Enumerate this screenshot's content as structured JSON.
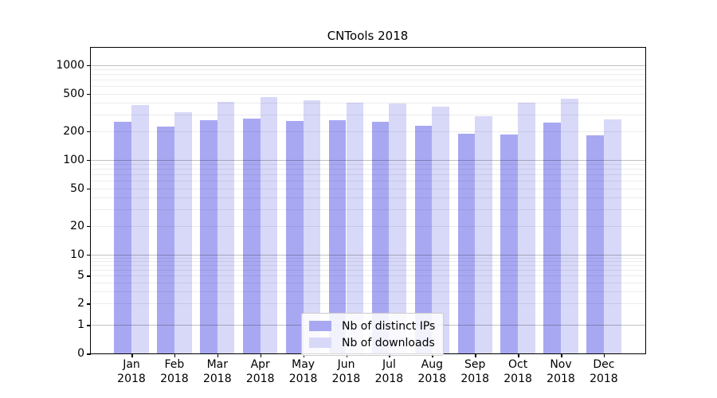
{
  "chart_data": {
    "type": "bar",
    "title": "CNTools 2018",
    "categories": [
      {
        "month": "Jan",
        "year": "2018"
      },
      {
        "month": "Feb",
        "year": "2018"
      },
      {
        "month": "Mar",
        "year": "2018"
      },
      {
        "month": "Apr",
        "year": "2018"
      },
      {
        "month": "May",
        "year": "2018"
      },
      {
        "month": "Jun",
        "year": "2018"
      },
      {
        "month": "Jul",
        "year": "2018"
      },
      {
        "month": "Aug",
        "year": "2018"
      },
      {
        "month": "Sep",
        "year": "2018"
      },
      {
        "month": "Oct",
        "year": "2018"
      },
      {
        "month": "Nov",
        "year": "2018"
      },
      {
        "month": "Dec",
        "year": "2018"
      }
    ],
    "series": [
      {
        "name": "Nb of distinct IPs",
        "color": "#a8a8f2",
        "values": [
          250,
          225,
          260,
          270,
          255,
          260,
          250,
          230,
          190,
          185,
          245,
          180
        ]
      },
      {
        "name": "Nb of downloads",
        "color": "#d8d8f8",
        "values": [
          380,
          320,
          410,
          460,
          425,
          400,
          390,
          365,
          290,
          400,
          440,
          265
        ]
      }
    ],
    "y_axis": {
      "scale": "log",
      "tick_labels": [
        "1000",
        "500",
        "200",
        "100",
        "50",
        "20",
        "10",
        "5",
        "2",
        "1",
        "0"
      ],
      "ylim": [
        0,
        1400
      ],
      "grid": true
    },
    "legend": {
      "position": "lower-center"
    }
  }
}
